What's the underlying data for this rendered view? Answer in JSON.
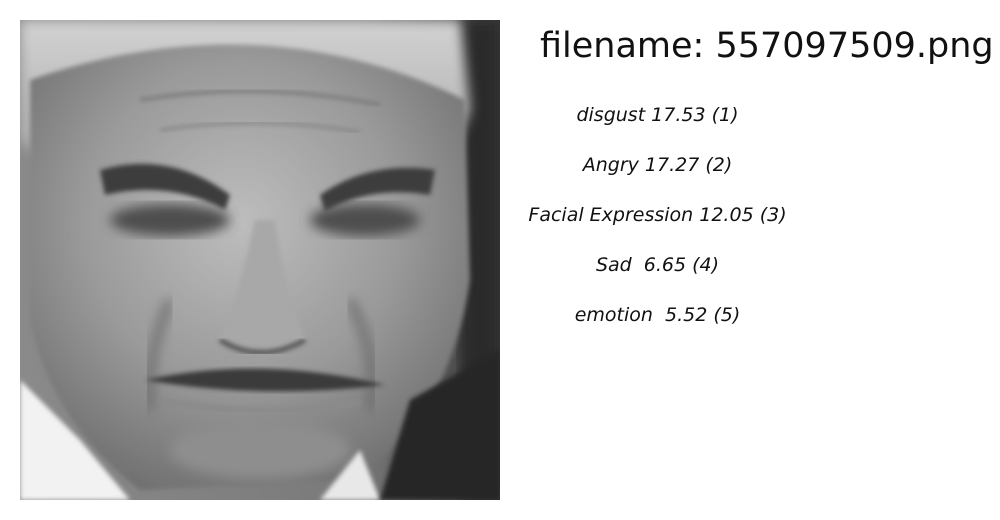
{
  "filename_text": "filename: 557097509.png",
  "photo": {
    "description": "grayscale-face-photo"
  },
  "predictions": [
    {
      "label": "disgust 17.53 (1)"
    },
    {
      "label": "Angry 17.27 (2)"
    },
    {
      "label": "Facial Expression 12.05 (3)"
    },
    {
      "label": "Sad  6.65 (4)"
    },
    {
      "label": "emotion  5.52 (5)"
    }
  ]
}
